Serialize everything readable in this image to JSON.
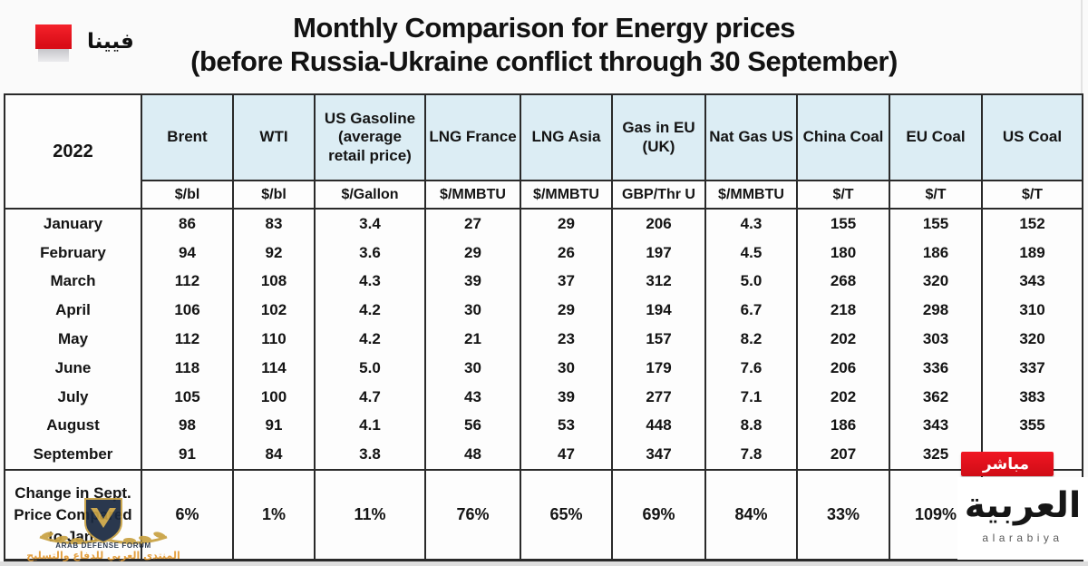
{
  "page": {
    "title_line1": "Monthly Comparison for Energy prices",
    "title_line2": "(before Russia-Ukraine conflict through 30 September)"
  },
  "branding": {
    "location_label": "فيينا",
    "live_badge": "مباشر",
    "channel_logo_arabic": "العربية",
    "channel_logo_latin": "alarabiya",
    "accent_red": "#e8111a"
  },
  "watermark": {
    "shield_icon": "shield-with-laurel-icon",
    "line1": "ARAB DEFENSE FORUM",
    "line2": "المنتدى العربي للدفاع والتسليح"
  },
  "chart_data": {
    "type": "table",
    "title": "Monthly Comparison for Energy prices (before Russia-Ukraine conflict through 30 September)",
    "year": "2022",
    "header_bg": "#dcedf4",
    "columns": [
      "Brent",
      "WTI",
      "US Gasoline (average retail price)",
      "LNG France",
      "LNG Asia",
      "Gas in EU (UK)",
      "Nat Gas US",
      "China Coal",
      "EU Coal",
      "US Coal"
    ],
    "units": [
      "$/bl",
      "$/bl",
      "$/Gallon",
      "$/MMBTU",
      "$/MMBTU",
      "GBP/Thr U",
      "$/MMBTU",
      "$/T",
      "$/T",
      "$/T"
    ],
    "months": [
      "January",
      "February",
      "March",
      "April",
      "May",
      "June",
      "July",
      "August",
      "September"
    ],
    "values": [
      [
        "86",
        "83",
        "3.4",
        "27",
        "29",
        "206",
        "4.3",
        "155",
        "155",
        "152"
      ],
      [
        "94",
        "92",
        "3.6",
        "29",
        "26",
        "197",
        "4.5",
        "180",
        "186",
        "189"
      ],
      [
        "112",
        "108",
        "4.3",
        "39",
        "37",
        "312",
        "5.0",
        "268",
        "320",
        "343"
      ],
      [
        "106",
        "102",
        "4.2",
        "30",
        "29",
        "194",
        "6.7",
        "218",
        "298",
        "310"
      ],
      [
        "112",
        "110",
        "4.2",
        "21",
        "23",
        "157",
        "8.2",
        "202",
        "303",
        "320"
      ],
      [
        "118",
        "114",
        "5.0",
        "30",
        "30",
        "179",
        "7.6",
        "206",
        "336",
        "337"
      ],
      [
        "105",
        "100",
        "4.7",
        "43",
        "39",
        "277",
        "7.1",
        "202",
        "362",
        "383"
      ],
      [
        "98",
        "91",
        "4.1",
        "56",
        "53",
        "448",
        "8.8",
        "186",
        "343",
        "355"
      ],
      [
        "91",
        "84",
        "3.8",
        "48",
        "47",
        "347",
        "7.8",
        "207",
        "325",
        ""
      ]
    ],
    "change_label": "Change in Sept. Price Compared to Jan.",
    "change_sept_vs_jan": [
      "6%",
      "1%",
      "11%",
      "76%",
      "65%",
      "69%",
      "84%",
      "33%",
      "109%",
      ""
    ]
  }
}
